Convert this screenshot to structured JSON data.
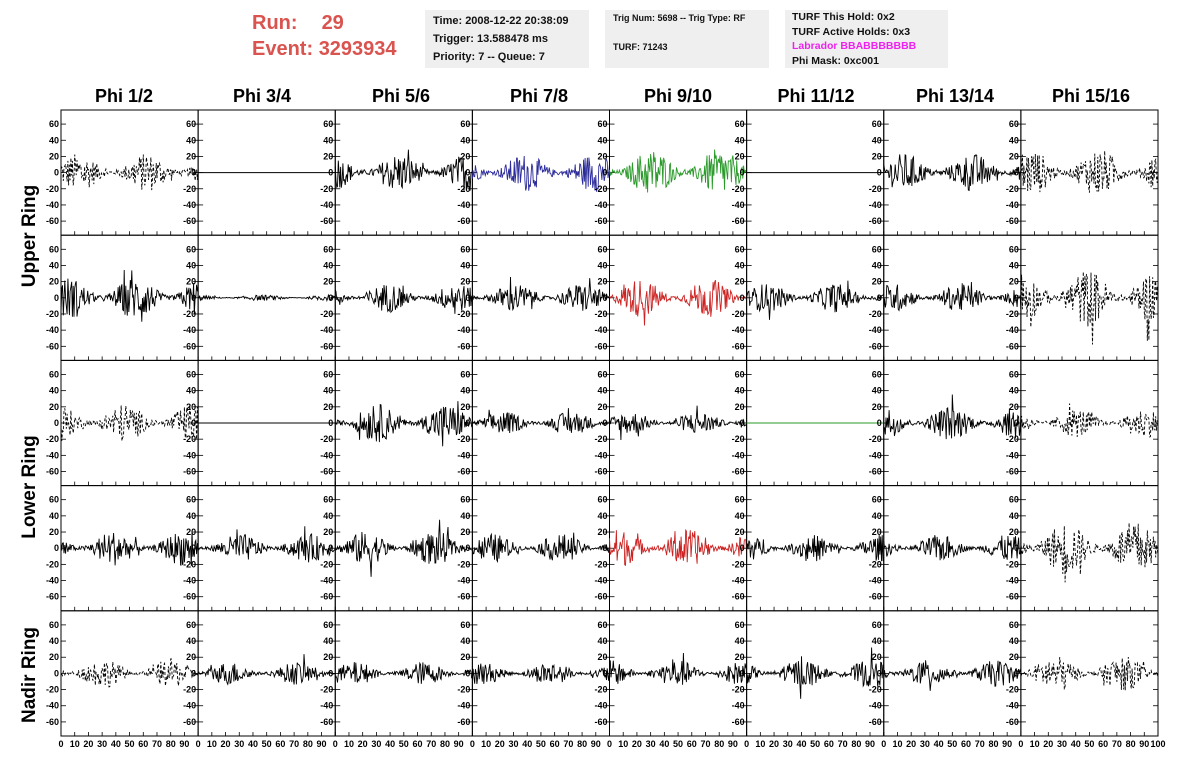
{
  "header": {
    "run_label": "Run:",
    "run_value": "29",
    "event_label": "Event:",
    "event_value": "3293934"
  },
  "info_box_1": {
    "time": "Time: 2008-12-22 20:38:09",
    "trigger": "Trigger: 13.588478 ms",
    "priority": "Priority: 7 -- Queue: 7"
  },
  "info_box_2": {
    "trig": "Trig Num: 5698 -- Trig Type: RF",
    "turf": "TURF: 71243"
  },
  "info_box_3": {
    "this_hold": "TURF This Hold: 0x2",
    "active_holds": "TURF Active Holds: 0x3",
    "labrador": "Labrador BBABBBBBBB",
    "phi_mask": "Phi Mask: 0xc001"
  },
  "colors": {
    "run_text": "#d9534f",
    "labrador_text": "#ee22ee",
    "blue_trace": "#2b2b9a",
    "green_trace": "#2a9a2a",
    "red_trace": "#cc2222",
    "black_trace": "#000000",
    "info_bg": "#efefef"
  },
  "chart_data": {
    "type": "line",
    "columns": [
      "Phi 1/2",
      "Phi 3/4",
      "Phi 5/6",
      "Phi 7/8",
      "Phi 9/10",
      "Phi 11/12",
      "Phi 13/14",
      "Phi 15/16"
    ],
    "rows": [
      "Upper Ring",
      "Lower Ring",
      "Nadir Ring"
    ],
    "xlim": [
      0,
      100
    ],
    "ylim": [
      -70,
      70
    ],
    "x_ticks": [
      0,
      10,
      20,
      30,
      40,
      50,
      60,
      70,
      80,
      90,
      100
    ],
    "y_ticks": [
      -60,
      -40,
      -20,
      0,
      20,
      40,
      60
    ],
    "panels": [
      [
        {
          "style": "dashed",
          "color": "black",
          "amplitude": 20
        },
        {
          "style": "flat",
          "color": "black",
          "amplitude": 0
        },
        {
          "style": "solid",
          "color": "black",
          "amplitude": 20
        },
        {
          "style": "solid",
          "color": "blue",
          "amplitude": 20
        },
        {
          "style": "solid",
          "color": "green",
          "amplitude": 25
        },
        {
          "style": "flat",
          "color": "black",
          "amplitude": 0
        },
        {
          "style": "solid",
          "color": "black",
          "amplitude": 20
        },
        {
          "style": "dashed",
          "color": "black",
          "amplitude": 25
        }
      ],
      [
        {
          "style": "solid",
          "color": "black",
          "amplitude": 22
        },
        {
          "style": "solid",
          "color": "black",
          "amplitude": 3
        },
        {
          "style": "solid",
          "color": "black",
          "amplitude": 15
        },
        {
          "style": "solid",
          "color": "black",
          "amplitude": 15
        },
        {
          "style": "solid",
          "color": "red",
          "amplitude": 20
        },
        {
          "style": "solid",
          "color": "black",
          "amplitude": 15
        },
        {
          "style": "solid",
          "color": "black",
          "amplitude": 15
        },
        {
          "style": "dashed",
          "color": "black",
          "amplitude": 30
        }
      ],
      [
        {
          "style": "dashed",
          "color": "black",
          "amplitude": 20
        },
        {
          "style": "flat",
          "color": "black",
          "amplitude": 0
        },
        {
          "style": "solid",
          "color": "black",
          "amplitude": 20
        },
        {
          "style": "solid",
          "color": "black",
          "amplitude": 12
        },
        {
          "style": "solid",
          "color": "black",
          "amplitude": 12
        },
        {
          "style": "flat",
          "color": "green",
          "amplitude": 0
        },
        {
          "style": "solid",
          "color": "black",
          "amplitude": 18
        },
        {
          "style": "dashed",
          "color": "black",
          "amplitude": 15
        }
      ],
      [
        {
          "style": "solid",
          "color": "black",
          "amplitude": 18
        },
        {
          "style": "solid",
          "color": "black",
          "amplitude": 15
        },
        {
          "style": "solid",
          "color": "black",
          "amplitude": 18
        },
        {
          "style": "solid",
          "color": "black",
          "amplitude": 15
        },
        {
          "style": "solid",
          "color": "red",
          "amplitude": 20
        },
        {
          "style": "solid",
          "color": "black",
          "amplitude": 14
        },
        {
          "style": "solid",
          "color": "black",
          "amplitude": 14
        },
        {
          "style": "dashed",
          "color": "black",
          "amplitude": 28
        }
      ],
      [
        {
          "style": "dashed",
          "color": "black",
          "amplitude": 15
        },
        {
          "style": "solid",
          "color": "black",
          "amplitude": 12
        },
        {
          "style": "solid",
          "color": "black",
          "amplitude": 12
        },
        {
          "style": "solid",
          "color": "black",
          "amplitude": 12
        },
        {
          "style": "solid",
          "color": "black",
          "amplitude": 14
        },
        {
          "style": "solid",
          "color": "black",
          "amplitude": 15
        },
        {
          "style": "solid",
          "color": "black",
          "amplitude": 14
        },
        {
          "style": "dashed",
          "color": "black",
          "amplitude": 18
        }
      ]
    ]
  }
}
